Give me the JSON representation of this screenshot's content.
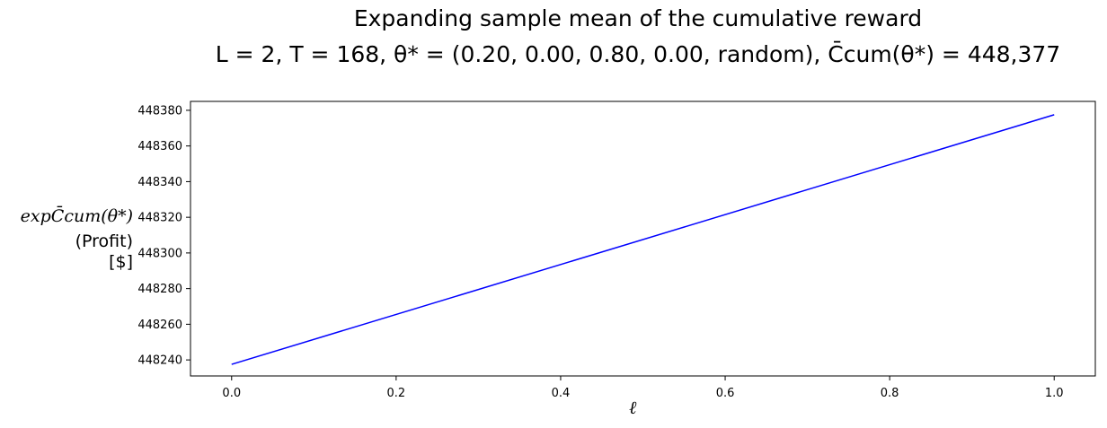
{
  "chart_data": {
    "type": "line",
    "title": {
      "line1": "Expanding sample mean of the cumulative reward",
      "line2": "L = 2, T = 168, θ* = (0.20, 0.00, 0.80, 0.00, random), C̄cum(θ*) = 448,377"
    },
    "ylabel": {
      "line1": "expC̄cum(θ*)",
      "line2": "(Profit)",
      "line3": "[$]"
    },
    "xlabel": "ℓ",
    "xlim": [
      -0.05,
      1.05
    ],
    "ylim": [
      448231,
      448385
    ],
    "xticks": [
      0.0,
      0.2,
      0.4,
      0.6,
      0.8,
      1.0
    ],
    "xtick_labels": [
      "0.0",
      "0.2",
      "0.4",
      "0.6",
      "0.8",
      "1.0"
    ],
    "yticks": [
      448240,
      448260,
      448280,
      448300,
      448320,
      448340,
      448360,
      448380
    ],
    "ytick_labels": [
      "448240",
      "448260",
      "448280",
      "448300",
      "448320",
      "448340",
      "448360",
      "448380"
    ],
    "series": [
      {
        "x": [
          0.0,
          1.0
        ],
        "y": [
          448237.5,
          448377.5
        ],
        "color": "#0000ff"
      }
    ],
    "grid": false,
    "legend": "none"
  }
}
